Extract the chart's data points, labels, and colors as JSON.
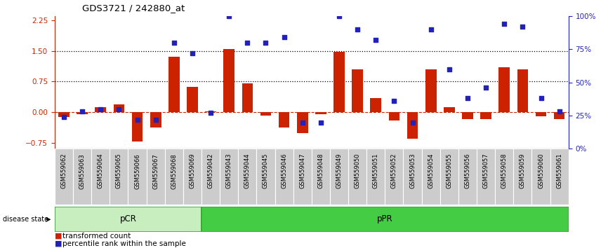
{
  "title": "GDS3721 / 242880_at",
  "categories": [
    "GSM559062",
    "GSM559063",
    "GSM559064",
    "GSM559065",
    "GSM559066",
    "GSM559067",
    "GSM559068",
    "GSM559069",
    "GSM559042",
    "GSM559043",
    "GSM559044",
    "GSM559045",
    "GSM559046",
    "GSM559047",
    "GSM559048",
    "GSM559049",
    "GSM559050",
    "GSM559051",
    "GSM559052",
    "GSM559053",
    "GSM559054",
    "GSM559055",
    "GSM559056",
    "GSM559057",
    "GSM559058",
    "GSM559059",
    "GSM559060",
    "GSM559061"
  ],
  "bar_values": [
    -0.12,
    -0.05,
    0.12,
    0.18,
    -0.72,
    -0.38,
    1.35,
    0.62,
    0.02,
    1.55,
    0.7,
    -0.08,
    -0.38,
    -0.52,
    -0.05,
    1.47,
    1.05,
    0.35,
    -0.2,
    -0.65,
    1.05,
    0.12,
    -0.18,
    -0.18,
    1.1,
    1.05,
    -0.1,
    -0.18
  ],
  "dot_pct": [
    24,
    28,
    30,
    30,
    22,
    22,
    80,
    72,
    27,
    100,
    80,
    80,
    84,
    20,
    20,
    100,
    90,
    82,
    36,
    20,
    90,
    60,
    38,
    46,
    94,
    92,
    38,
    28
  ],
  "pcr_count": 8,
  "hlines": [
    1.5,
    0.75
  ],
  "ylim": [
    -0.9,
    2.35
  ],
  "yticks": [
    -0.75,
    0.0,
    0.75,
    1.5,
    2.25
  ],
  "y2lim": [
    0,
    100
  ],
  "y2ticks": [
    0,
    25,
    50,
    75,
    100
  ],
  "bar_color": "#cc2200",
  "dot_color": "#2222bb",
  "bar_width": 0.6,
  "pcr_facecolor": "#c8eec0",
  "ppr_facecolor": "#44cc44",
  "tick_bg": "#cccccc"
}
